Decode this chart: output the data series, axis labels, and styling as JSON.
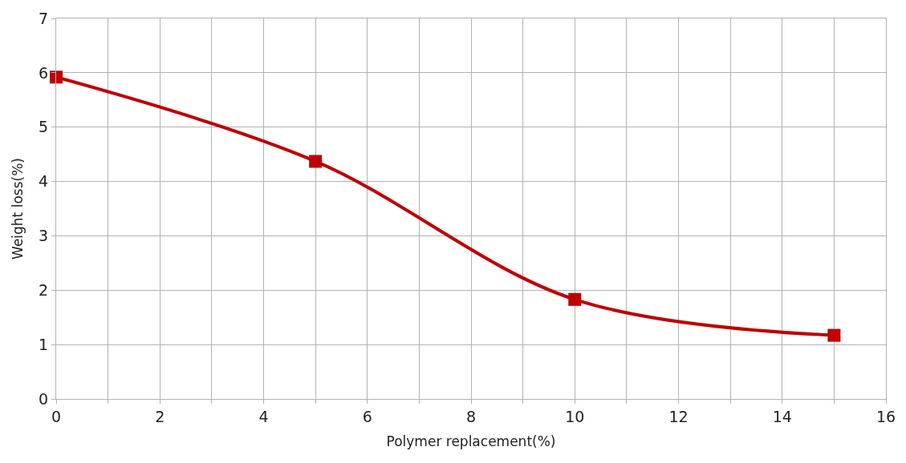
{
  "chart_data": {
    "type": "line",
    "xlabel": "Polymer replacement(%)",
    "ylabel": "Weight loss(%)",
    "x": [
      0,
      5,
      10,
      15
    ],
    "series": [
      {
        "color": "#c00000",
        "values": [
          5.92,
          4.37,
          1.83,
          1.17
        ]
      }
    ],
    "xlim": [
      0,
      16
    ],
    "ylim": [
      0,
      7
    ],
    "xticks": [
      0,
      {
        "value": 1,
        "label": null
      },
      2,
      {
        "value": 3,
        "label": null
      },
      4,
      {
        "value": 5,
        "label": null
      },
      6,
      {
        "value": 7,
        "label": null
      },
      8,
      {
        "value": 9,
        "label": null
      },
      10,
      {
        "value": 11,
        "label": null
      },
      12,
      {
        "value": 13,
        "label": null
      },
      14,
      {
        "value": 15,
        "label": null
      },
      16
    ],
    "yticks": [
      0,
      1,
      2,
      3,
      4,
      5,
      6,
      7
    ],
    "grid": true,
    "marker": "square",
    "line_style": "solid"
  }
}
